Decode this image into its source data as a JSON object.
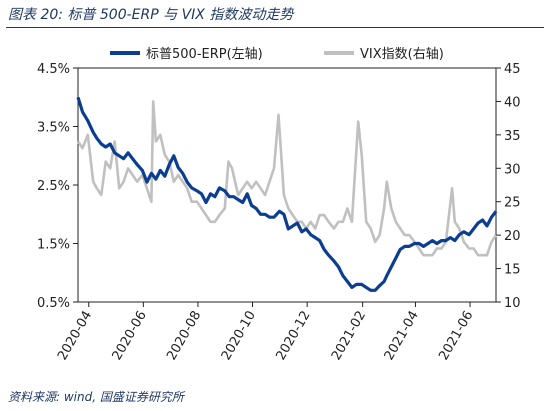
{
  "header": {
    "title": "图表 20:  标普 500-ERP 与 VIX 指数波动走势"
  },
  "footer": {
    "source": "资料来源:  wind,  国盛证券研究所"
  },
  "colors": {
    "erp": "#0b3d91",
    "vix": "#c0c0c0",
    "frame": "#222222"
  },
  "chart_data": {
    "type": "line",
    "title": "",
    "x_ticks": [
      "2020-04",
      "2020-06",
      "2020-08",
      "2020-10",
      "2020-12",
      "2021-02",
      "2021-04",
      "2021-06"
    ],
    "x_range": [
      "2020-03-20",
      "2021-06-30"
    ],
    "y_left": {
      "unit": "%",
      "ticks": [
        "0.5%",
        "1.5%",
        "2.5%",
        "3.5%",
        "4.5%"
      ],
      "range": [
        0.5,
        4.5
      ]
    },
    "y_right": {
      "ticks": [
        "10",
        "15",
        "20",
        "25",
        "30",
        "35",
        "40",
        "45"
      ],
      "range": [
        10,
        45
      ]
    },
    "legend": {
      "placement": "top"
    },
    "series": [
      {
        "name": "标普500-ERP(左轴)",
        "axis": "left",
        "color": "#0b3d91",
        "x": [
          "2020-03-20",
          "2020-03-25",
          "2020-03-31",
          "2020-04-06",
          "2020-04-10",
          "2020-04-15",
          "2020-04-20",
          "2020-04-25",
          "2020-04-30",
          "2020-05-05",
          "2020-05-10",
          "2020-05-15",
          "2020-05-20",
          "2020-05-25",
          "2020-05-31",
          "2020-06-05",
          "2020-06-10",
          "2020-06-15",
          "2020-06-20",
          "2020-06-25",
          "2020-06-30",
          "2020-07-05",
          "2020-07-10",
          "2020-07-15",
          "2020-07-20",
          "2020-07-25",
          "2020-07-31",
          "2020-08-05",
          "2020-08-10",
          "2020-08-15",
          "2020-08-20",
          "2020-08-25",
          "2020-08-31",
          "2020-09-05",
          "2020-09-10",
          "2020-09-15",
          "2020-09-20",
          "2020-09-25",
          "2020-09-30",
          "2020-10-05",
          "2020-10-10",
          "2020-10-15",
          "2020-10-20",
          "2020-10-25",
          "2020-10-31",
          "2020-11-05",
          "2020-11-10",
          "2020-11-15",
          "2020-11-20",
          "2020-11-25",
          "2020-11-30",
          "2020-12-05",
          "2020-12-10",
          "2020-12-15",
          "2020-12-20",
          "2020-12-25",
          "2020-12-31",
          "2021-01-05",
          "2021-01-10",
          "2021-01-15",
          "2021-01-20",
          "2021-01-25",
          "2021-01-31",
          "2021-02-05",
          "2021-02-10",
          "2021-02-15",
          "2021-02-20",
          "2021-02-25",
          "2021-02-28",
          "2021-03-05",
          "2021-03-10",
          "2021-03-15",
          "2021-03-20",
          "2021-03-25",
          "2021-03-31",
          "2021-04-05",
          "2021-04-10",
          "2021-04-15",
          "2021-04-20",
          "2021-04-25",
          "2021-04-30",
          "2021-05-05",
          "2021-05-10",
          "2021-05-15",
          "2021-05-20",
          "2021-05-25",
          "2021-05-31",
          "2021-06-05",
          "2021-06-10",
          "2021-06-15",
          "2021-06-20",
          "2021-06-25",
          "2021-06-30"
        ],
        "y": [
          4.0,
          3.75,
          3.6,
          3.4,
          3.3,
          3.2,
          3.15,
          3.2,
          3.05,
          3.0,
          2.95,
          3.05,
          2.95,
          2.85,
          2.75,
          2.55,
          2.7,
          2.6,
          2.75,
          2.65,
          2.85,
          3.0,
          2.8,
          2.7,
          2.55,
          2.45,
          2.4,
          2.35,
          2.2,
          2.35,
          2.3,
          2.45,
          2.4,
          2.3,
          2.3,
          2.25,
          2.2,
          2.35,
          2.15,
          2.1,
          2.0,
          2.0,
          1.95,
          1.95,
          2.05,
          2.0,
          1.75,
          1.8,
          1.85,
          1.7,
          1.75,
          1.65,
          1.6,
          1.55,
          1.4,
          1.3,
          1.2,
          1.1,
          0.95,
          0.85,
          0.75,
          0.8,
          0.8,
          0.75,
          0.7,
          0.7,
          0.78,
          0.85,
          0.95,
          1.1,
          1.25,
          1.4,
          1.45,
          1.45,
          1.5,
          1.5,
          1.45,
          1.5,
          1.55,
          1.5,
          1.55,
          1.55,
          1.6,
          1.55,
          1.65,
          1.7,
          1.65,
          1.75,
          1.85,
          1.9,
          1.8,
          1.95,
          2.05
        ]
      },
      {
        "name": "VIX指数(右轴)",
        "axis": "right",
        "color": "#c0c0c0",
        "x": [
          "2020-03-20",
          "2020-03-25",
          "2020-03-31",
          "2020-04-06",
          "2020-04-10",
          "2020-04-15",
          "2020-04-20",
          "2020-04-25",
          "2020-04-30",
          "2020-05-05",
          "2020-05-10",
          "2020-05-15",
          "2020-05-20",
          "2020-05-25",
          "2020-05-31",
          "2020-06-05",
          "2020-06-10",
          "2020-06-12",
          "2020-06-15",
          "2020-06-20",
          "2020-06-25",
          "2020-06-30",
          "2020-07-05",
          "2020-07-10",
          "2020-07-15",
          "2020-07-20",
          "2020-07-25",
          "2020-07-31",
          "2020-08-05",
          "2020-08-10",
          "2020-08-15",
          "2020-08-20",
          "2020-08-25",
          "2020-08-31",
          "2020-09-04",
          "2020-09-08",
          "2020-09-15",
          "2020-09-20",
          "2020-09-25",
          "2020-09-30",
          "2020-10-05",
          "2020-10-10",
          "2020-10-15",
          "2020-10-20",
          "2020-10-25",
          "2020-10-30",
          "2020-11-05",
          "2020-11-10",
          "2020-11-15",
          "2020-11-20",
          "2020-11-25",
          "2020-11-30",
          "2020-12-05",
          "2020-12-10",
          "2020-12-15",
          "2020-12-20",
          "2020-12-25",
          "2020-12-31",
          "2021-01-05",
          "2021-01-10",
          "2021-01-15",
          "2021-01-20",
          "2021-01-27",
          "2021-01-31",
          "2021-02-05",
          "2021-02-10",
          "2021-02-15",
          "2021-02-20",
          "2021-02-25",
          "2021-02-28",
          "2021-03-05",
          "2021-03-10",
          "2021-03-15",
          "2021-03-20",
          "2021-03-25",
          "2021-03-31",
          "2021-04-05",
          "2021-04-10",
          "2021-04-15",
          "2021-04-20",
          "2021-04-25",
          "2021-04-30",
          "2021-05-05",
          "2021-05-12",
          "2021-05-15",
          "2021-05-20",
          "2021-05-25",
          "2021-05-31",
          "2021-06-05",
          "2021-06-10",
          "2021-06-15",
          "2021-06-20",
          "2021-06-25",
          "2021-06-30"
        ],
        "y": [
          34,
          33,
          35,
          28,
          27,
          26,
          31,
          30,
          34,
          27,
          28,
          30,
          29,
          28,
          29,
          27,
          25,
          40,
          34,
          35,
          32,
          31,
          28,
          29,
          28,
          27,
          25,
          25,
          24,
          23,
          22,
          22,
          23,
          24,
          31,
          30,
          26,
          27,
          28,
          27,
          28,
          27,
          26,
          28,
          30,
          38,
          26,
          24,
          23,
          22,
          22,
          21,
          22,
          21,
          23,
          23,
          22,
          21,
          22,
          22,
          24,
          22,
          37,
          32,
          22,
          21,
          19,
          20,
          24,
          28,
          24,
          22,
          21,
          20,
          20,
          19,
          18,
          17,
          17,
          17,
          18,
          18,
          19,
          27,
          22,
          21,
          19,
          18,
          18,
          17,
          17,
          17,
          19,
          20
        ]
      }
    ]
  }
}
